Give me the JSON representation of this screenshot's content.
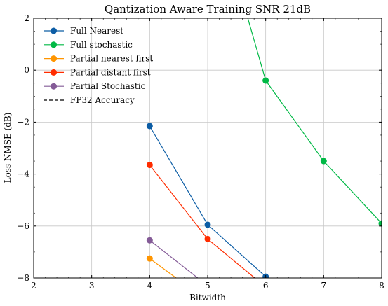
{
  "chart_data": {
    "type": "line",
    "title": "Qantization Aware Training SNR 21dB",
    "xlabel": "Bitwidth",
    "ylabel": "Loss NMSE (dB)",
    "xlim": [
      2,
      8
    ],
    "ylim": [
      -8,
      2
    ],
    "xticks": [
      "2",
      "3",
      "4",
      "5",
      "6",
      "7",
      "8"
    ],
    "yticks": [
      "2",
      "0",
      "−2",
      "−4",
      "−6",
      "−8"
    ],
    "grid": true,
    "legend_position": "top-left",
    "series": [
      {
        "name": "Full Nearest",
        "color": "#0c5da5",
        "x": [
          4,
          5,
          6
        ],
        "y": [
          -2.15,
          -5.95,
          -7.95
        ],
        "marker": true
      },
      {
        "name": "Full stochastic",
        "color": "#00b945",
        "x": [
          5.5,
          6,
          7,
          8
        ],
        "y": [
          3.5,
          -0.4,
          -3.5,
          -5.9
        ],
        "marker": true,
        "first_point_marker": false
      },
      {
        "name": "Partial nearest first",
        "color": "#ff9500",
        "x": [
          4,
          4.7
        ],
        "y": [
          -7.25,
          -8.4
        ],
        "marker": true
      },
      {
        "name": "Partial distant first",
        "color": "#ff2c00",
        "x": [
          4,
          5,
          6
        ],
        "y": [
          -3.65,
          -6.5,
          -8.35
        ],
        "marker": true
      },
      {
        "name": "Partial Stochastic",
        "color": "#845b97",
        "x": [
          4,
          5
        ],
        "y": [
          -6.55,
          -8.3
        ],
        "marker": true
      },
      {
        "name": "FP32 Accuracy",
        "color": "#000000",
        "dashed": true,
        "x": [],
        "y": []
      }
    ]
  }
}
